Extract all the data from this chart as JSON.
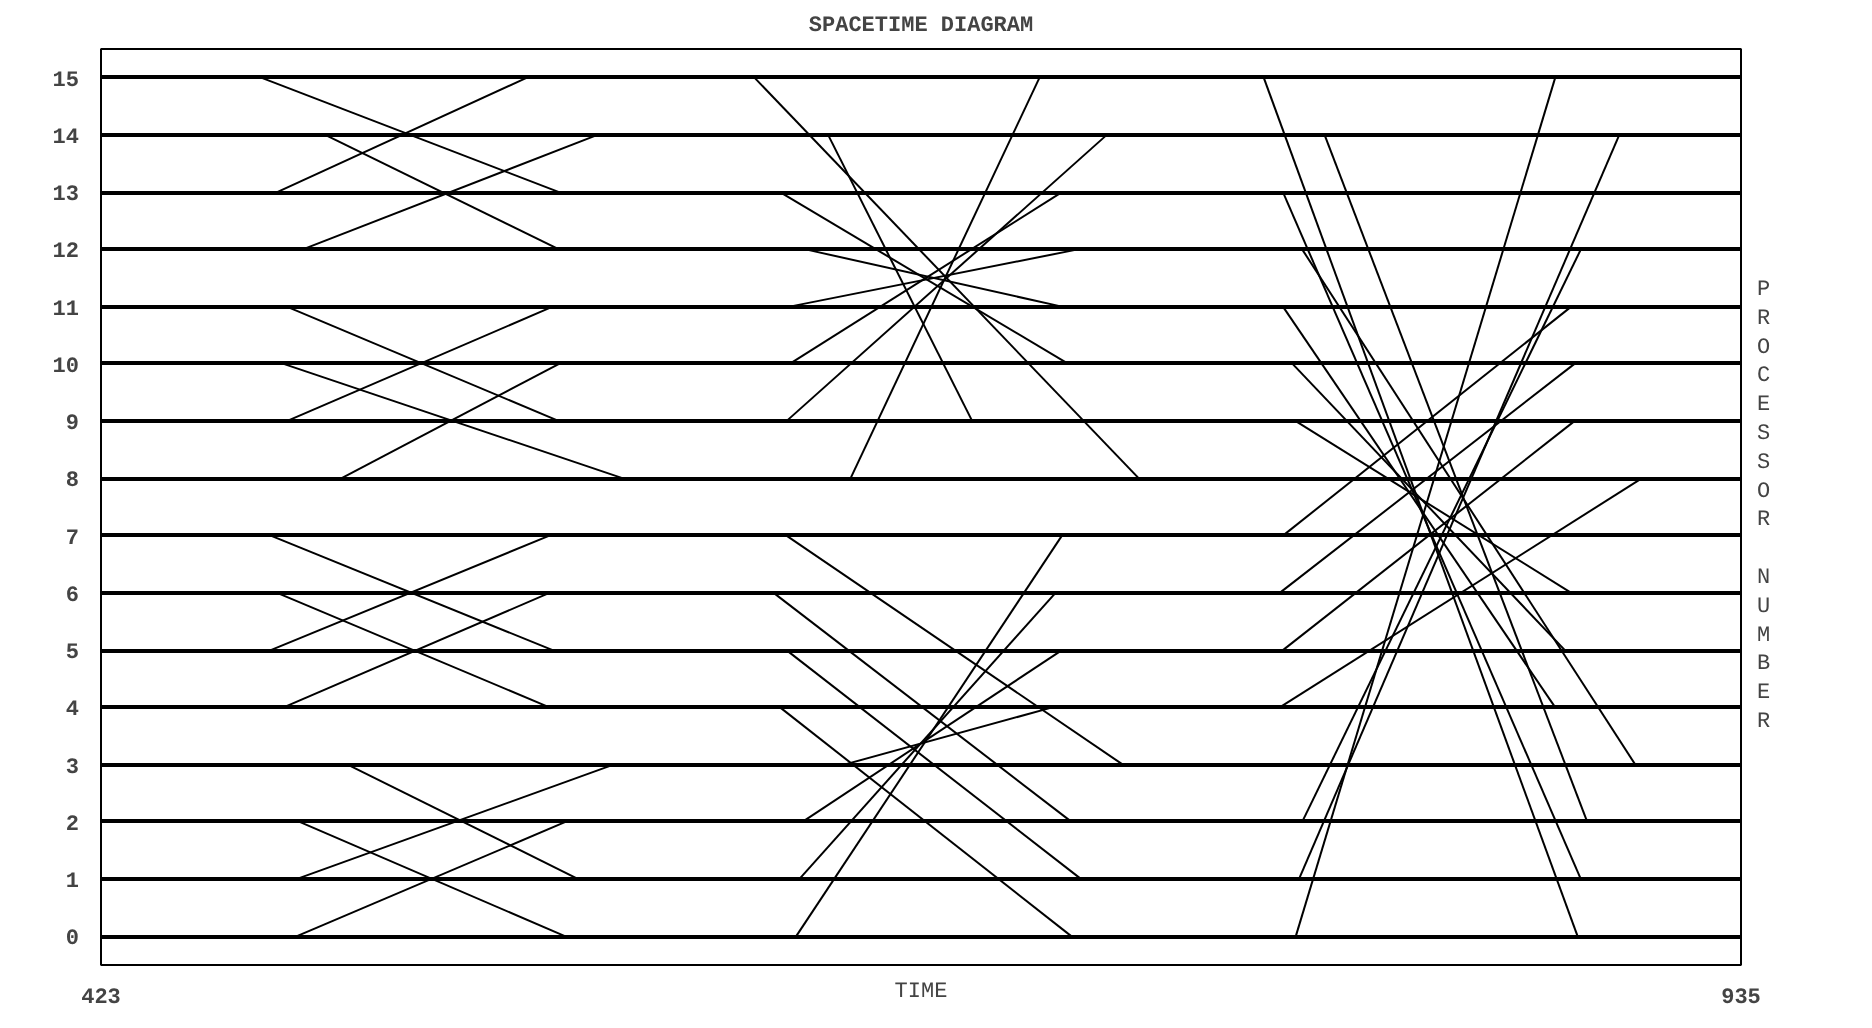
{
  "chart_data": {
    "type": "line",
    "title": "SPACETIME DIAGRAM",
    "xlabel": "TIME",
    "ylabel": "PROCESSOR NUMBER",
    "xlim": [
      423,
      935
    ],
    "xticks": [
      423,
      935
    ],
    "ylim": [
      -0.5,
      15.5
    ],
    "yticks": [
      0,
      1,
      2,
      3,
      4,
      5,
      6,
      7,
      8,
      9,
      10,
      11,
      12,
      13,
      14,
      15
    ],
    "grid": "y",
    "marker": "none",
    "line_style": "solid",
    "series": [
      {
        "color": "#000000",
        "x": [
          473,
          566
        ],
        "values": [
          15,
          13
        ]
      },
      {
        "color": "#000000",
        "x": [
          478,
          556
        ],
        "values": [
          13,
          15
        ]
      },
      {
        "color": "#000000",
        "x": [
          493,
          566
        ],
        "values": [
          14,
          12
        ]
      },
      {
        "color": "#000000",
        "x": [
          486,
          578
        ],
        "values": [
          12,
          14
        ]
      },
      {
        "color": "#000000",
        "x": [
          481,
          566
        ],
        "values": [
          11,
          9
        ]
      },
      {
        "color": "#000000",
        "x": [
          481,
          564
        ],
        "values": [
          9,
          11
        ]
      },
      {
        "color": "#000000",
        "x": [
          480,
          586
        ],
        "values": [
          10,
          8
        ]
      },
      {
        "color": "#000000",
        "x": [
          498,
          566
        ],
        "values": [
          8,
          10
        ]
      },
      {
        "color": "#000000",
        "x": [
          476,
          564
        ],
        "values": [
          7,
          5
        ]
      },
      {
        "color": "#000000",
        "x": [
          476,
          563
        ],
        "values": [
          5,
          7
        ]
      },
      {
        "color": "#000000",
        "x": [
          478,
          563
        ],
        "values": [
          6,
          4
        ]
      },
      {
        "color": "#000000",
        "x": [
          480,
          563
        ],
        "values": [
          4,
          6
        ]
      },
      {
        "color": "#000000",
        "x": [
          500,
          572
        ],
        "values": [
          3,
          1
        ]
      },
      {
        "color": "#000000",
        "x": [
          484,
          583
        ],
        "values": [
          1,
          3
        ]
      },
      {
        "color": "#000000",
        "x": [
          485,
          568
        ],
        "values": [
          2,
          0
        ]
      },
      {
        "color": "#000000",
        "x": [
          484,
          568
        ],
        "values": [
          0,
          2
        ]
      },
      {
        "color": "#000000",
        "x": [
          627,
          747
        ],
        "values": [
          15,
          8
        ]
      },
      {
        "color": "#000000",
        "x": [
          657,
          716
        ],
        "values": [
          8,
          15
        ]
      },
      {
        "color": "#000000",
        "x": [
          650,
          695
        ],
        "values": [
          14,
          9
        ]
      },
      {
        "color": "#000000",
        "x": [
          637,
          737
        ],
        "values": [
          9,
          14
        ]
      },
      {
        "color": "#000000",
        "x": [
          635,
          725
        ],
        "values": [
          13,
          10
        ]
      },
      {
        "color": "#000000",
        "x": [
          638,
          723
        ],
        "values": [
          10,
          13
        ]
      },
      {
        "color": "#000000",
        "x": [
          643,
          723
        ],
        "values": [
          12,
          11
        ]
      },
      {
        "color": "#000000",
        "x": [
          638,
          728
        ],
        "values": [
          11,
          12
        ]
      },
      {
        "color": "#000000",
        "x": [
          637,
          742
        ],
        "values": [
          7,
          3
        ]
      },
      {
        "color": "#000000",
        "x": [
          633,
          726
        ],
        "values": [
          6,
          2
        ]
      },
      {
        "color": "#000000",
        "x": [
          637,
          729
        ],
        "values": [
          5,
          1
        ]
      },
      {
        "color": "#000000",
        "x": [
          635,
          726
        ],
        "values": [
          4,
          0
        ]
      },
      {
        "color": "#000000",
        "x": [
          640,
          723
        ],
        "values": [
          0,
          7
        ]
      },
      {
        "color": "#000000",
        "x": [
          641,
          721
        ],
        "values": [
          1,
          6
        ]
      },
      {
        "color": "#000000",
        "x": [
          642,
          723
        ],
        "values": [
          2,
          5
        ]
      },
      {
        "color": "#000000",
        "x": [
          655,
          720
        ],
        "values": [
          3,
          4
        ]
      },
      {
        "color": "#000000",
        "x": [
          786,
          884
        ],
        "values": [
          15,
          0
        ]
      },
      {
        "color": "#000000",
        "x": [
          805,
          887
        ],
        "values": [
          14,
          2
        ]
      },
      {
        "color": "#000000",
        "x": [
          792,
          885
        ],
        "values": [
          13,
          1
        ]
      },
      {
        "color": "#000000",
        "x": [
          798,
          902
        ],
        "values": [
          12,
          3
        ]
      },
      {
        "color": "#000000",
        "x": [
          792,
          877
        ],
        "values": [
          11,
          4
        ]
      },
      {
        "color": "#000000",
        "x": [
          795,
          880
        ],
        "values": [
          10,
          5
        ]
      },
      {
        "color": "#000000",
        "x": [
          796,
          882
        ],
        "values": [
          9,
          6
        ]
      },
      {
        "color": "#000000",
        "x": [
          796,
          877
        ],
        "values": [
          0,
          15
        ]
      },
      {
        "color": "#000000",
        "x": [
          797,
          897
        ],
        "values": [
          1,
          14
        ]
      },
      {
        "color": "#000000",
        "x": [
          798,
          885
        ],
        "values": [
          2,
          12
        ]
      },
      {
        "color": "#000000",
        "x": [
          792,
          882
        ],
        "values": [
          7,
          11
        ]
      },
      {
        "color": "#000000",
        "x": [
          791,
          883
        ],
        "values": [
          6,
          10
        ]
      },
      {
        "color": "#000000",
        "x": [
          792,
          883
        ],
        "values": [
          5,
          9
        ]
      },
      {
        "color": "#000000",
        "x": [
          791,
          904
        ],
        "values": [
          4,
          8
        ]
      }
    ]
  }
}
